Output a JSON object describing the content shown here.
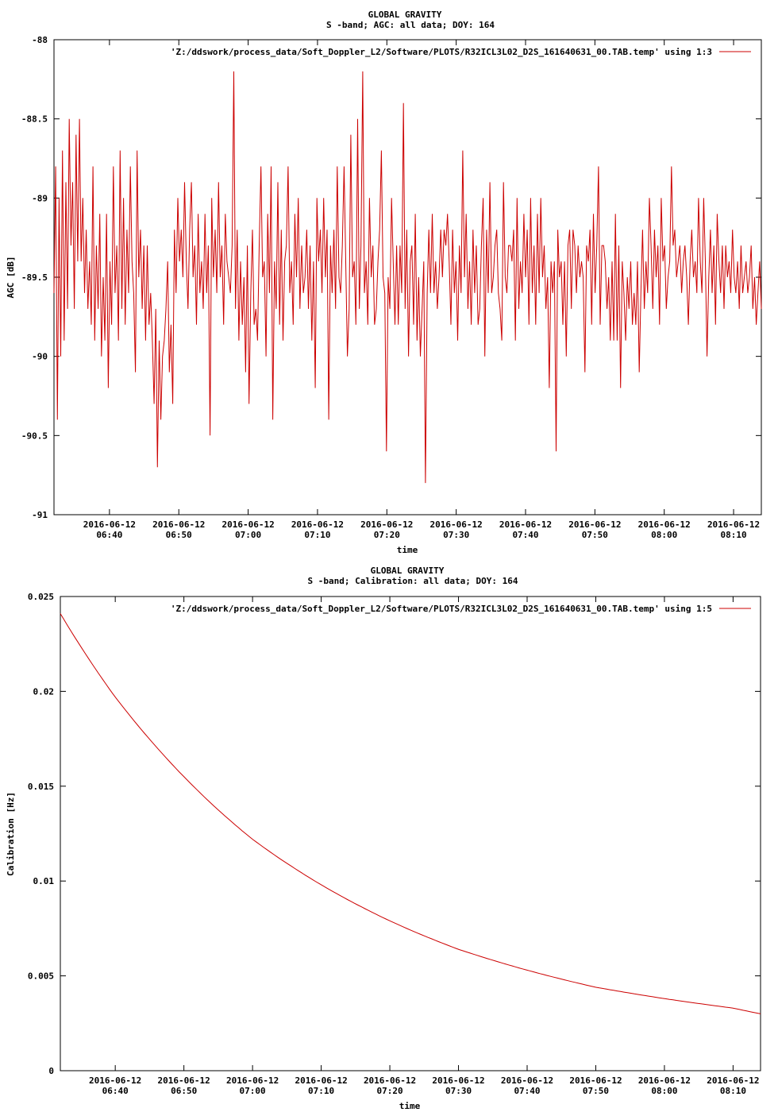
{
  "chart_data": [
    {
      "type": "line",
      "title": "GLOBAL GRAVITY",
      "subtitle": "S -band; AGC: all data; DOY: 164",
      "xlabel": "time",
      "ylabel": "AGC [dB]",
      "ylim": [
        -91,
        -88
      ],
      "yticks": [
        -88,
        -88.5,
        -89,
        -89.5,
        -90,
        -90.5,
        -91
      ],
      "ytick_labels": [
        "-88",
        "-88.5",
        "-89",
        "-89.5",
        "-90",
        "-90.5",
        "-91"
      ],
      "xlim": [
        "2016-06-12 06:32",
        "2016-06-12 08:14"
      ],
      "xticks": [
        "2016-06-12 06:40",
        "2016-06-12 06:50",
        "2016-06-12 07:00",
        "2016-06-12 07:10",
        "2016-06-12 07:20",
        "2016-06-12 07:30",
        "2016-06-12 07:40",
        "2016-06-12 07:50",
        "2016-06-12 08:00",
        "2016-06-12 08:10"
      ],
      "xtick_date_labels": [
        "2016-06-12",
        "2016-06-12",
        "2016-06-12",
        "2016-06-12",
        "2016-06-12",
        "2016-06-12",
        "2016-06-12",
        "2016-06-12",
        "2016-06-12",
        "2016-06-12"
      ],
      "xtick_time_labels": [
        "06:40",
        "06:50",
        "07:00",
        "07:10",
        "07:20",
        "07:30",
        "07:40",
        "07:50",
        "08:00",
        "08:10"
      ],
      "grid": false,
      "legend": "top-right",
      "series": [
        {
          "name": "'Z:/ddswork/process_data/Soft_Doppler_L2/Software/PLOTS/R32ICL3L02_D2S_161640631_00.TAB.temp' using 1:3",
          "color": "#cc0000",
          "x_start": "2016-06-12 06:32",
          "x_end": "2016-06-12 08:14",
          "values": [
            -89.6,
            -88.8,
            -90.4,
            -89.0,
            -90.0,
            -88.7,
            -89.9,
            -88.9,
            -89.7,
            -88.5,
            -89.3,
            -88.9,
            -89.7,
            -88.6,
            -89.4,
            -88.5,
            -89.4,
            -89.0,
            -89.6,
            -89.2,
            -89.7,
            -89.4,
            -89.8,
            -88.8,
            -89.9,
            -89.3,
            -89.7,
            -89.1,
            -90.0,
            -89.5,
            -89.9,
            -89.1,
            -90.2,
            -89.4,
            -89.8,
            -88.8,
            -89.6,
            -89.3,
            -89.9,
            -88.7,
            -89.7,
            -89.0,
            -89.8,
            -89.2,
            -89.6,
            -88.8,
            -89.4,
            -89.6,
            -90.1,
            -88.7,
            -89.5,
            -89.2,
            -89.7,
            -89.3,
            -89.9,
            -89.3,
            -89.8,
            -89.6,
            -89.9,
            -90.3,
            -89.7,
            -90.7,
            -89.9,
            -90.4,
            -90.0,
            -89.9,
            -89.7,
            -89.4,
            -90.1,
            -89.8,
            -90.3,
            -89.2,
            -89.6,
            -89.0,
            -89.4,
            -89.2,
            -89.5,
            -88.9,
            -89.4,
            -89.7,
            -89.2,
            -88.9,
            -89.5,
            -89.3,
            -89.8,
            -89.1,
            -89.6,
            -89.4,
            -89.7,
            -89.1,
            -89.6,
            -89.3,
            -90.5,
            -89.0,
            -89.5,
            -89.2,
            -89.6,
            -88.9,
            -89.5,
            -89.3,
            -89.8,
            -89.1,
            -89.4,
            -89.5,
            -89.6,
            -89.3,
            -88.2,
            -89.7,
            -89.2,
            -89.9,
            -89.4,
            -89.8,
            -89.5,
            -90.1,
            -89.3,
            -90.3,
            -89.6,
            -89.2,
            -89.8,
            -89.7,
            -89.9,
            -89.3,
            -88.8,
            -89.5,
            -89.4,
            -90.0,
            -89.1,
            -89.6,
            -88.8,
            -90.4,
            -89.4,
            -89.7,
            -88.9,
            -89.8,
            -89.2,
            -89.9,
            -89.4,
            -89.3,
            -88.8,
            -89.6,
            -89.4,
            -89.8,
            -89.1,
            -89.5,
            -89.0,
            -89.7,
            -89.3,
            -89.6,
            -89.5,
            -89.2,
            -89.7,
            -89.3,
            -89.9,
            -89.4,
            -90.2,
            -89.0,
            -89.4,
            -89.2,
            -89.6,
            -89.0,
            -89.5,
            -89.2,
            -90.4,
            -89.3,
            -89.6,
            -89.2,
            -89.7,
            -88.8,
            -89.5,
            -89.6,
            -89.3,
            -88.8,
            -89.4,
            -90.0,
            -89.7,
            -88.6,
            -89.5,
            -89.4,
            -89.8,
            -88.5,
            -89.7,
            -89.3,
            -88.2,
            -89.6,
            -89.4,
            -89.8,
            -89.0,
            -89.5,
            -89.3,
            -89.8,
            -89.7,
            -89.4,
            -89.2,
            -88.7,
            -89.5,
            -89.6,
            -90.6,
            -89.5,
            -89.7,
            -89.0,
            -89.4,
            -89.8,
            -89.3,
            -89.8,
            -89.3,
            -89.6,
            -88.4,
            -89.7,
            -89.2,
            -90.0,
            -89.4,
            -89.3,
            -89.8,
            -89.1,
            -89.9,
            -89.5,
            -90.0,
            -89.7,
            -89.4,
            -90.8,
            -89.6,
            -89.2,
            -89.6,
            -89.1,
            -89.6,
            -89.4,
            -89.7,
            -89.5,
            -89.2,
            -89.5,
            -89.2,
            -89.3,
            -89.1,
            -89.4,
            -89.8,
            -89.2,
            -89.6,
            -89.4,
            -89.9,
            -89.3,
            -89.6,
            -88.7,
            -89.5,
            -89.1,
            -89.7,
            -89.4,
            -89.8,
            -89.2,
            -89.6,
            -89.3,
            -89.8,
            -89.7,
            -89.3,
            -89.0,
            -90.0,
            -89.2,
            -89.6,
            -88.9,
            -89.6,
            -89.5,
            -89.3,
            -89.2,
            -89.6,
            -89.7,
            -89.9,
            -88.9,
            -89.5,
            -89.6,
            -89.3,
            -89.3,
            -89.4,
            -89.2,
            -89.9,
            -89.0,
            -89.7,
            -89.4,
            -89.6,
            -89.1,
            -89.5,
            -89.2,
            -89.8,
            -89.0,
            -89.6,
            -89.3,
            -89.8,
            -89.1,
            -89.6,
            -89.0,
            -89.5,
            -89.3,
            -89.7,
            -89.5,
            -90.2,
            -89.4,
            -89.6,
            -89.4,
            -90.6,
            -89.2,
            -89.5,
            -89.4,
            -89.8,
            -89.4,
            -90.0,
            -89.3,
            -89.2,
            -89.7,
            -89.2,
            -89.3,
            -89.6,
            -89.3,
            -89.5,
            -89.4,
            -89.5,
            -90.1,
            -89.3,
            -89.4,
            -89.2,
            -89.8,
            -89.1,
            -89.6,
            -89.3,
            -88.8,
            -89.8,
            -89.3,
            -89.3,
            -89.4,
            -89.7,
            -89.5,
            -89.9,
            -89.4,
            -89.9,
            -89.1,
            -89.9,
            -89.3,
            -90.2,
            -89.4,
            -89.6,
            -89.9,
            -89.5,
            -89.7,
            -89.4,
            -89.8,
            -89.6,
            -89.8,
            -89.4,
            -90.1,
            -89.6,
            -89.2,
            -89.7,
            -89.4,
            -89.6,
            -89.0,
            -89.3,
            -89.7,
            -89.2,
            -89.5,
            -89.3,
            -89.8,
            -89.0,
            -89.4,
            -89.3,
            -89.7,
            -89.5,
            -89.4,
            -88.8,
            -89.3,
            -89.2,
            -89.5,
            -89.4,
            -89.3,
            -89.6,
            -89.4,
            -89.3,
            -89.5,
            -89.8,
            -89.4,
            -89.2,
            -89.5,
            -89.4,
            -89.6,
            -89.0,
            -89.4,
            -89.6,
            -89.0,
            -89.4,
            -90.0,
            -89.5,
            -89.2,
            -89.6,
            -89.3,
            -89.8,
            -89.1,
            -89.4,
            -89.6,
            -89.3,
            -89.7,
            -89.3,
            -89.5,
            -89.4,
            -89.6,
            -89.2,
            -89.5,
            -89.6,
            -89.4,
            -89.7,
            -89.3,
            -89.6,
            -89.5,
            -89.4,
            -89.6,
            -89.5,
            -89.3,
            -89.7,
            -89.5,
            -89.8,
            -89.6,
            -89.4,
            -89.7
          ]
        }
      ]
    },
    {
      "type": "line",
      "title": "GLOBAL GRAVITY",
      "subtitle": "S -band; Calibration: all data; DOY: 164",
      "xlabel": "time",
      "ylabel": "Calibration [Hz]",
      "ylim": [
        0,
        0.025
      ],
      "yticks": [
        0.025,
        0.02,
        0.015,
        0.01,
        0.005,
        0
      ],
      "ytick_labels": [
        "0.025",
        "0.02",
        "0.015",
        "0.01",
        "0.005",
        "0"
      ],
      "xlim": [
        "2016-06-12 06:32",
        "2016-06-12 08:14"
      ],
      "xticks": [
        "2016-06-12 06:40",
        "2016-06-12 06:50",
        "2016-06-12 07:00",
        "2016-06-12 07:10",
        "2016-06-12 07:20",
        "2016-06-12 07:30",
        "2016-06-12 07:40",
        "2016-06-12 07:50",
        "2016-06-12 08:00",
        "2016-06-12 08:10"
      ],
      "xtick_date_labels": [
        "2016-06-12",
        "2016-06-12",
        "2016-06-12",
        "2016-06-12",
        "2016-06-12",
        "2016-06-12",
        "2016-06-12",
        "2016-06-12",
        "2016-06-12",
        "2016-06-12"
      ],
      "xtick_time_labels": [
        "06:40",
        "06:50",
        "07:00",
        "07:10",
        "07:20",
        "07:30",
        "07:40",
        "07:50",
        "08:00",
        "08:10"
      ],
      "grid": false,
      "legend": "top-right",
      "series": [
        {
          "name": "'Z:/ddswork/process_data/Soft_Doppler_L2/Software/PLOTS/R32ICL3L02_D2S_161640631_00.TAB.temp' using 1:5",
          "color": "#cc0000",
          "x": [
            "2016-06-12 06:32",
            "2016-06-12 06:40",
            "2016-06-12 06:50",
            "2016-06-12 07:00",
            "2016-06-12 07:10",
            "2016-06-12 07:20",
            "2016-06-12 07:30",
            "2016-06-12 07:40",
            "2016-06-12 07:50",
            "2016-06-12 08:00",
            "2016-06-12 08:10",
            "2016-06-12 08:14"
          ],
          "values": [
            0.0241,
            0.0197,
            0.0155,
            0.0122,
            0.0098,
            0.0079,
            0.0064,
            0.0053,
            0.0044,
            0.0038,
            0.0033,
            0.003
          ]
        }
      ]
    }
  ]
}
